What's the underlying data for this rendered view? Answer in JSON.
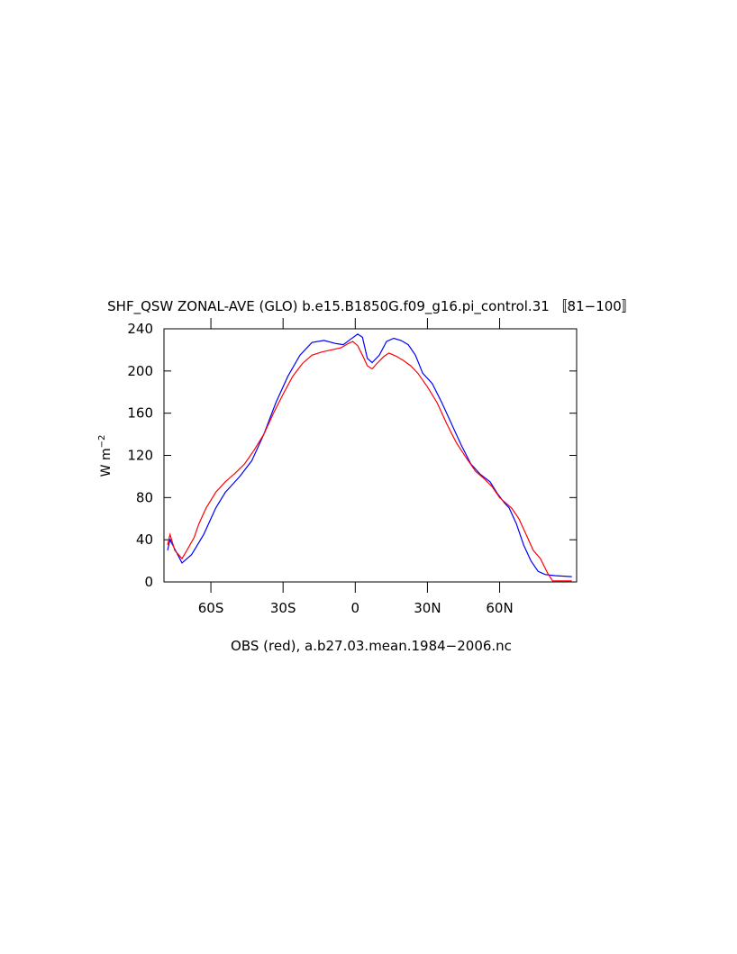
{
  "chart_data": {
    "type": "line",
    "title": "SHF_QSW ZONAL-AVE (GLO) b.e15.B1850G.f09_g16.pi_control.31 〚81−100〛",
    "x_label": "OBS (red), a.b27.03.mean.1984−2006.nc",
    "y_label": "W m",
    "y_label_sup": "−2",
    "xlim": [
      -79.5,
      92
    ],
    "ylim": [
      0,
      240
    ],
    "xticks": [
      {
        "value": -60,
        "label": "60S"
      },
      {
        "value": -30,
        "label": "30S"
      },
      0,
      {
        "value": 30,
        "label": "30N"
      },
      {
        "value": 60,
        "label": "60N"
      }
    ],
    "yticks": [
      0,
      40,
      80,
      120,
      160,
      200,
      240
    ],
    "series": [
      {
        "color": "#0000ff",
        "x": [
          -78,
          -77,
          -72,
          -68,
          -63,
          -58,
          -54,
          -48,
          -43,
          -38,
          -33,
          -28,
          -23,
          -18,
          -13,
          -8,
          -5,
          -2,
          1,
          3,
          5,
          7,
          10,
          13,
          16,
          19,
          22,
          25,
          28,
          32,
          36,
          40,
          44,
          48,
          52,
          56,
          59,
          62,
          64,
          67,
          70,
          73,
          76,
          79,
          83,
          90
        ],
        "values": [
          30,
          40,
          18,
          26,
          45,
          70,
          85,
          100,
          115,
          140,
          170,
          195,
          215,
          227,
          229,
          226,
          225,
          230,
          235,
          232,
          212,
          208,
          215,
          228,
          231,
          229,
          225,
          215,
          198,
          188,
          170,
          150,
          130,
          112,
          102,
          95,
          84,
          75,
          70,
          55,
          35,
          20,
          10,
          7,
          6,
          5
        ]
      },
      {
        "color": "#ff0000",
        "x": [
          -78,
          -77,
          -75,
          -72,
          -70,
          -67,
          -65,
          -62,
          -58,
          -54,
          -50,
          -46,
          -42,
          -38,
          -34,
          -30,
          -26,
          -22,
          -18,
          -14,
          -10,
          -6,
          -3,
          -1,
          1,
          3,
          5,
          7,
          9,
          12,
          14,
          17,
          20,
          23,
          26,
          30,
          34,
          38,
          42,
          46,
          50,
          54,
          57,
          60,
          63,
          65,
          68,
          71,
          74,
          77,
          80,
          82,
          90
        ],
        "values": [
          35,
          45,
          30,
          22,
          30,
          42,
          55,
          70,
          85,
          95,
          103,
          112,
          125,
          140,
          160,
          178,
          195,
          207,
          215,
          218,
          220,
          222,
          226,
          228,
          224,
          215,
          205,
          202,
          207,
          214,
          217,
          214,
          210,
          205,
          198,
          185,
          170,
          150,
          132,
          118,
          105,
          97,
          90,
          80,
          74,
          70,
          60,
          45,
          30,
          22,
          8,
          1,
          1
        ]
      }
    ]
  }
}
